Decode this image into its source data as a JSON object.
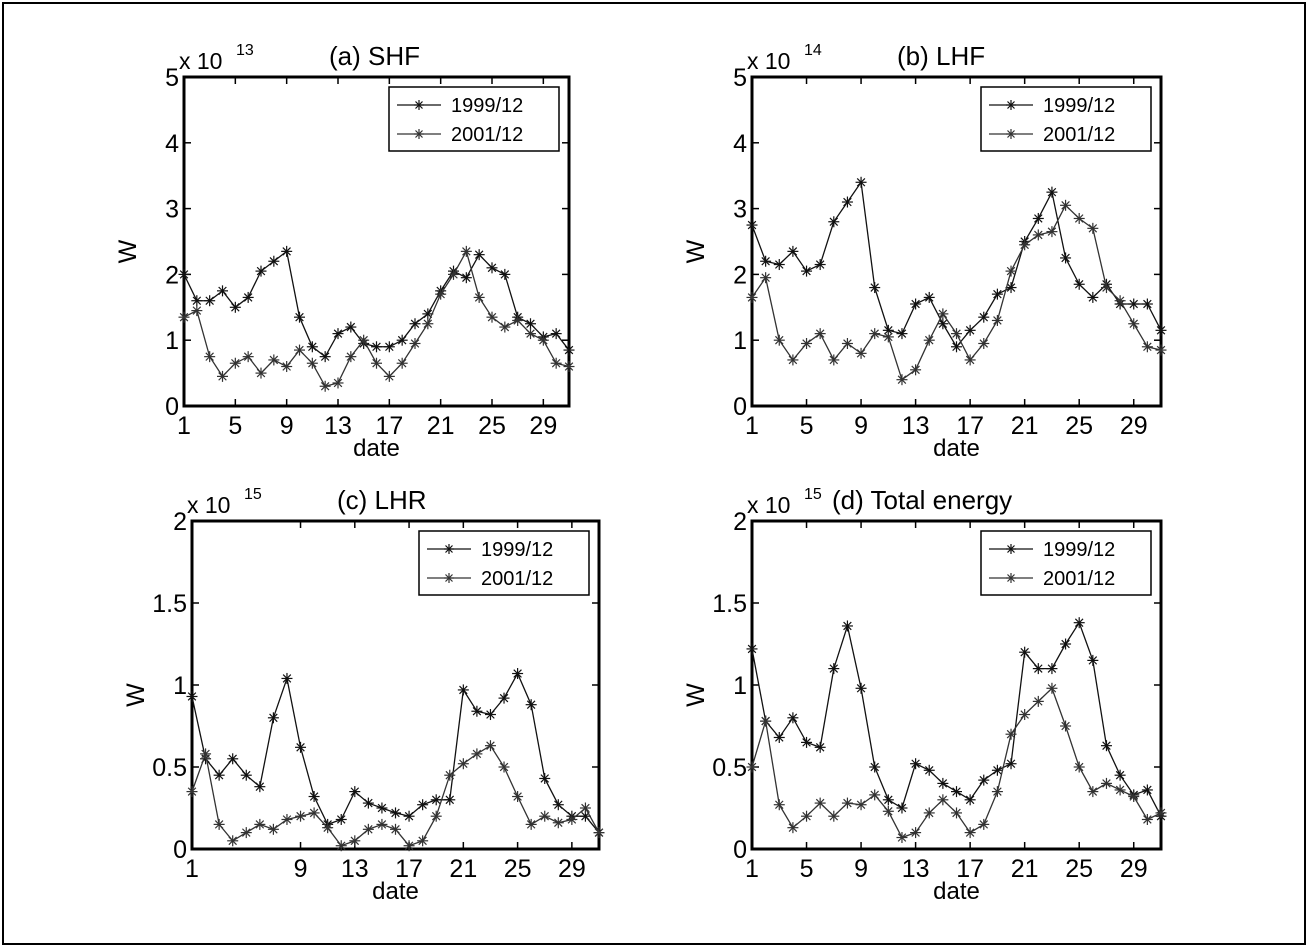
{
  "chart_data": [
    {
      "type": "line",
      "title": "(a) SHF",
      "multiplier": "x 10",
      "exponent": "13",
      "ylabel": "W",
      "xlabel": "date",
      "ylim": [
        0,
        5
      ],
      "yticks": [
        0,
        1,
        2,
        3,
        4,
        5
      ],
      "ytick_labels": [
        "0",
        "1",
        "2",
        "3",
        "4",
        "5"
      ],
      "xlim": [
        1,
        31
      ],
      "xticks": [
        1,
        5,
        9,
        13,
        17,
        21,
        25,
        29
      ],
      "xtick_labels": [
        "1",
        "5",
        "9",
        "13",
        "17",
        "21",
        "25",
        "29"
      ],
      "legend_position": "top-right",
      "x": [
        1,
        2,
        3,
        4,
        5,
        6,
        7,
        8,
        9,
        10,
        11,
        12,
        13,
        14,
        15,
        16,
        17,
        18,
        19,
        20,
        21,
        22,
        23,
        24,
        25,
        26,
        27,
        28,
        29,
        30,
        31
      ],
      "series": [
        {
          "name": "1999/12",
          "values": [
            2.0,
            1.6,
            1.6,
            1.75,
            1.5,
            1.65,
            2.05,
            2.2,
            2.35,
            1.35,
            0.9,
            0.75,
            1.1,
            1.2,
            0.95,
            0.9,
            0.9,
            1.0,
            1.25,
            1.4,
            1.75,
            2.05,
            1.95,
            2.3,
            2.1,
            2.0,
            1.35,
            1.25,
            1.05,
            1.1,
            0.85
          ]
        },
        {
          "name": "2001/12",
          "values": [
            1.35,
            1.45,
            0.75,
            0.45,
            0.65,
            0.75,
            0.5,
            0.7,
            0.6,
            0.85,
            0.65,
            0.3,
            0.35,
            0.75,
            1.0,
            0.65,
            0.45,
            0.65,
            0.95,
            1.25,
            1.7,
            2.0,
            2.35,
            1.65,
            1.35,
            1.2,
            1.3,
            1.1,
            1.0,
            0.65,
            0.6
          ]
        }
      ]
    },
    {
      "type": "line",
      "title": "(b) LHF",
      "multiplier": "x 10",
      "exponent": "14",
      "ylabel": "W",
      "xlabel": "date",
      "ylim": [
        0,
        5
      ],
      "yticks": [
        0,
        1,
        2,
        3,
        4,
        5
      ],
      "ytick_labels": [
        "0",
        "1",
        "2",
        "3",
        "4",
        "5"
      ],
      "xlim": [
        1,
        31
      ],
      "xticks": [
        1,
        5,
        9,
        13,
        17,
        21,
        25,
        29
      ],
      "xtick_labels": [
        "1",
        "5",
        "9",
        "13",
        "17",
        "21",
        "25",
        "29"
      ],
      "legend_position": "top-right",
      "x": [
        1,
        2,
        3,
        4,
        5,
        6,
        7,
        8,
        9,
        10,
        11,
        12,
        13,
        14,
        15,
        16,
        17,
        18,
        19,
        20,
        21,
        22,
        23,
        24,
        25,
        26,
        27,
        28,
        29,
        30,
        31
      ],
      "series": [
        {
          "name": "1999/12",
          "values": [
            2.75,
            2.2,
            2.15,
            2.35,
            2.05,
            2.15,
            2.8,
            3.1,
            3.4,
            1.8,
            1.15,
            1.1,
            1.55,
            1.65,
            1.25,
            0.9,
            1.15,
            1.35,
            1.7,
            1.8,
            2.5,
            2.85,
            3.25,
            2.25,
            1.85,
            1.65,
            1.85,
            1.55,
            1.55,
            1.55,
            1.15
          ]
        },
        {
          "name": "2001/12",
          "values": [
            1.65,
            1.95,
            1.0,
            0.7,
            0.95,
            1.1,
            0.7,
            0.95,
            0.8,
            1.1,
            1.05,
            0.4,
            0.55,
            1.0,
            1.4,
            1.1,
            0.7,
            0.95,
            1.3,
            2.05,
            2.45,
            2.6,
            2.65,
            3.05,
            2.85,
            2.7,
            1.8,
            1.6,
            1.25,
            0.9,
            0.85
          ]
        }
      ]
    },
    {
      "type": "line",
      "title": "(c) LHR",
      "multiplier": "x 10",
      "exponent": "15",
      "ylabel": "W",
      "xlabel": "date",
      "ylim": [
        0,
        2
      ],
      "yticks": [
        0,
        0.5,
        1,
        1.5,
        2
      ],
      "ytick_labels": [
        "0",
        "0.5",
        "1",
        "1.5",
        "2"
      ],
      "xlim": [
        1,
        31
      ],
      "xticks": [
        1,
        9,
        13,
        17,
        21,
        25,
        29
      ],
      "xtick_labels": [
        "1",
        "9",
        "13",
        "17",
        "21",
        "25",
        "29"
      ],
      "legend_position": "top-right",
      "x": [
        1,
        2,
        3,
        4,
        5,
        6,
        7,
        8,
        9,
        10,
        11,
        12,
        13,
        14,
        15,
        16,
        17,
        18,
        19,
        20,
        21,
        22,
        23,
        24,
        25,
        26,
        27,
        28,
        29,
        30,
        31
      ],
      "series": [
        {
          "name": "1999/12",
          "values": [
            0.93,
            0.55,
            0.45,
            0.55,
            0.45,
            0.38,
            0.8,
            1.04,
            0.62,
            0.32,
            0.15,
            0.18,
            0.35,
            0.28,
            0.25,
            0.22,
            0.2,
            0.27,
            0.3,
            0.3,
            0.97,
            0.84,
            0.82,
            0.92,
            1.07,
            0.88,
            0.43,
            0.27,
            0.2,
            0.2,
            0.1
          ]
        },
        {
          "name": "2001/12",
          "values": [
            0.35,
            0.58,
            0.15,
            0.05,
            0.1,
            0.15,
            0.12,
            0.18,
            0.2,
            0.22,
            0.13,
            0.02,
            0.05,
            0.12,
            0.15,
            0.12,
            0.02,
            0.05,
            0.2,
            0.45,
            0.52,
            0.58,
            0.63,
            0.5,
            0.32,
            0.15,
            0.2,
            0.16,
            0.18,
            0.25,
            0.1
          ]
        }
      ]
    },
    {
      "type": "line",
      "title": "(d) Total energy",
      "multiplier": "x 10",
      "exponent": "15",
      "ylabel": "W",
      "xlabel": "date",
      "ylim": [
        0,
        2
      ],
      "yticks": [
        0,
        0.5,
        1,
        1.5,
        2
      ],
      "ytick_labels": [
        "0",
        "0.5",
        "1",
        "1.5",
        "2"
      ],
      "xlim": [
        1,
        31
      ],
      "xticks": [
        1,
        5,
        9,
        13,
        17,
        21,
        25,
        29
      ],
      "xtick_labels": [
        "1",
        "5",
        "9",
        "13",
        "17",
        "21",
        "25",
        "29"
      ],
      "legend_position": "top-right",
      "x": [
        1,
        2,
        3,
        4,
        5,
        6,
        7,
        8,
        9,
        10,
        11,
        12,
        13,
        14,
        15,
        16,
        17,
        18,
        19,
        20,
        21,
        22,
        23,
        24,
        25,
        26,
        27,
        28,
        29,
        30,
        31
      ],
      "series": [
        {
          "name": "1999/12",
          "values": [
            1.22,
            0.78,
            0.68,
            0.8,
            0.65,
            0.62,
            1.1,
            1.36,
            0.98,
            0.5,
            0.3,
            0.25,
            0.52,
            0.48,
            0.4,
            0.35,
            0.3,
            0.42,
            0.48,
            0.52,
            1.2,
            1.1,
            1.1,
            1.25,
            1.38,
            1.15,
            0.63,
            0.45,
            0.33,
            0.36,
            0.2
          ]
        },
        {
          "name": "2001/12",
          "values": [
            0.5,
            0.78,
            0.27,
            0.13,
            0.2,
            0.28,
            0.2,
            0.28,
            0.27,
            0.33,
            0.23,
            0.07,
            0.1,
            0.22,
            0.3,
            0.22,
            0.1,
            0.15,
            0.35,
            0.7,
            0.82,
            0.9,
            0.98,
            0.75,
            0.5,
            0.35,
            0.4,
            0.36,
            0.32,
            0.18,
            0.22
          ]
        }
      ]
    }
  ]
}
